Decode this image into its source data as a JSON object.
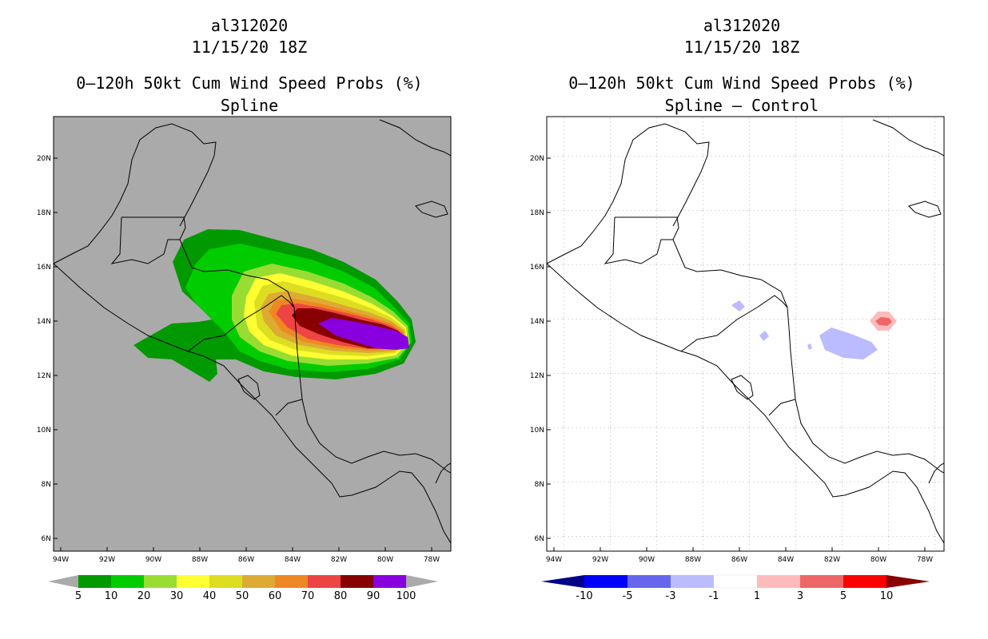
{
  "left_panel": {
    "storm_id": "al312020",
    "datetime": "11/15/20 18Z",
    "product": "0–120h 50kt Cum Wind Speed Probs (%)",
    "method": "Spline"
  },
  "right_panel": {
    "storm_id": "al312020",
    "datetime": "11/15/20 18Z",
    "product": "0–120h 50kt Cum Wind Speed Probs (%)",
    "method": "Spline – Control"
  },
  "lat_labels": [
    "20N",
    "18N",
    "16N",
    "14N",
    "12N",
    "10N",
    "8N",
    "6N"
  ],
  "lon_labels": [
    "94W",
    "92W",
    "90W",
    "88W",
    "86W",
    "84W",
    "82W",
    "80W",
    "78W"
  ],
  "left_colorbar": {
    "labels": [
      "5",
      "10",
      "20",
      "30",
      "40",
      "50",
      "60",
      "70",
      "80",
      "90",
      "100"
    ],
    "colors": [
      "#009900",
      "#00cc00",
      "#99dd33",
      "#ffff33",
      "#dddd22",
      "#ddaa33",
      "#ee8822",
      "#ee4444",
      "#880000",
      "#8800dd"
    ],
    "end_color": "#aaaaaa"
  },
  "right_colorbar": {
    "labels": [
      "-10",
      "-5",
      "-3",
      "-1",
      "1",
      "3",
      "5",
      "10"
    ],
    "colors": [
      "#0000ff",
      "#6666ee",
      "#bbbbff",
      "#ffffff",
      "#ffbbbb",
      "#ee6666",
      "#ff0000"
    ],
    "low_end_color": "#000088",
    "high_end_color": "#880000"
  },
  "map_background_left": "#aaaaaa",
  "map_background_right": "#ffffff"
}
